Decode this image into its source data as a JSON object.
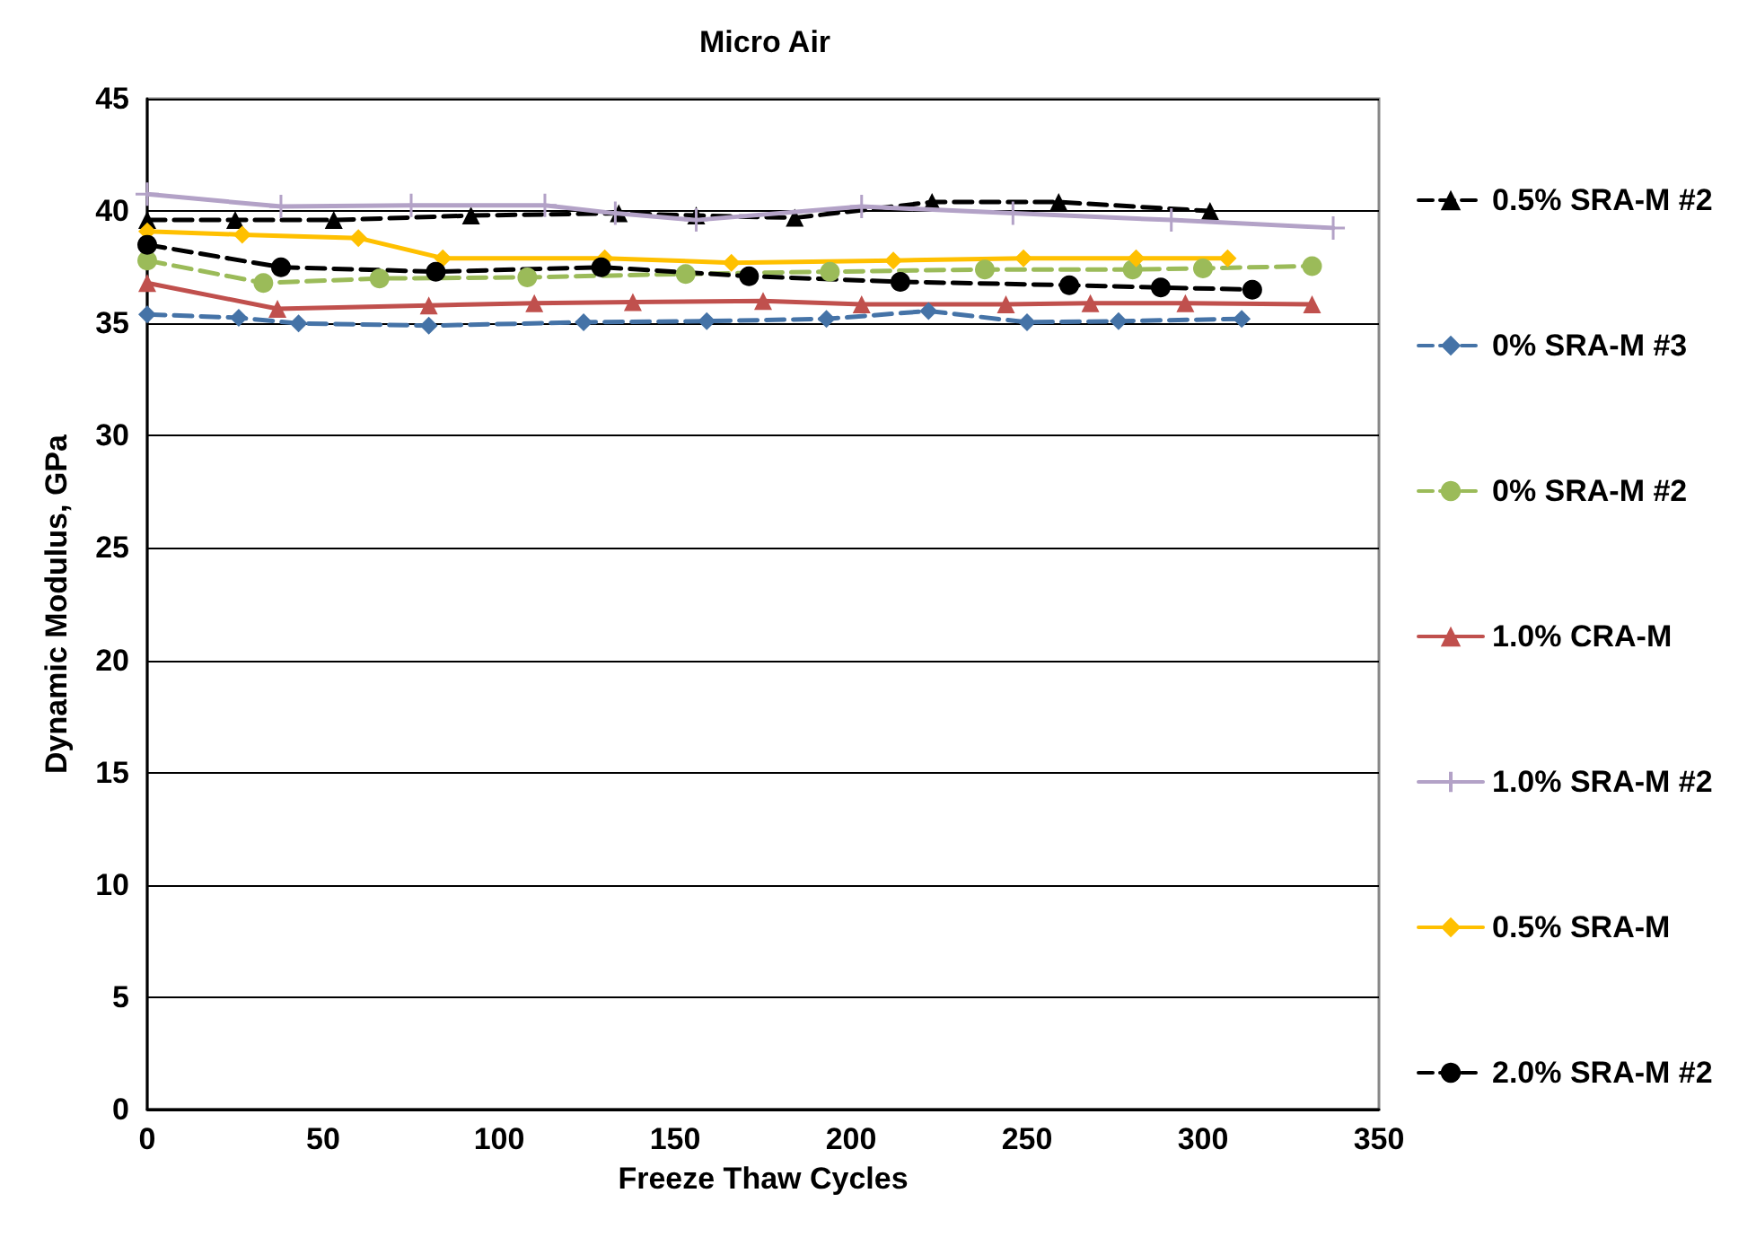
{
  "chart_data": {
    "type": "line",
    "title": "Micro Air",
    "xlabel": "Freeze Thaw Cycles",
    "ylabel": "Dynamic Modulus, GPa",
    "xlim": [
      0,
      350
    ],
    "xticks": [
      0,
      50,
      100,
      150,
      200,
      250,
      300,
      350
    ],
    "ylim": [
      0,
      45
    ],
    "yticks": [
      0,
      5,
      10,
      15,
      20,
      25,
      30,
      35,
      40,
      45
    ],
    "grid": "y",
    "legend": "right",
    "series": [
      {
        "name": "0.5% SRA-M #2",
        "color": "#000000",
        "marker": "triangle",
        "line_style": "dashed",
        "x": [
          0,
          25,
          53,
          92,
          134,
          156,
          184,
          223,
          259,
          302
        ],
        "values": [
          39.6,
          39.6,
          39.6,
          39.8,
          39.9,
          39.8,
          39.7,
          40.4,
          40.4,
          40.0
        ]
      },
      {
        "name": "0% SRA-M #3",
        "color": "#4573a7",
        "marker": "diamond",
        "line_style": "dashed",
        "x": [
          0,
          26,
          43,
          80,
          124,
          159,
          193,
          222,
          250,
          276,
          311
        ],
        "values": [
          35.4,
          35.25,
          35.0,
          34.9,
          35.05,
          35.1,
          35.2,
          35.55,
          35.05,
          35.1,
          35.2
        ]
      },
      {
        "name": "0% SRA-M #2",
        "color": "#9bbb59",
        "marker": "circle",
        "line_style": "dashed",
        "x": [
          0,
          33,
          66,
          108,
          153,
          194,
          238,
          280,
          300,
          331
        ],
        "values": [
          37.8,
          36.8,
          37.0,
          37.05,
          37.2,
          37.3,
          37.4,
          37.4,
          37.45,
          37.55
        ]
      },
      {
        "name": "1.0% CRA-M",
        "color": "#c0504d",
        "marker": "triangle",
        "line_style": "solid",
        "x": [
          0,
          37,
          80,
          110,
          138,
          175,
          203,
          244,
          268,
          295,
          331
        ],
        "values": [
          36.8,
          35.65,
          35.8,
          35.9,
          35.95,
          36.0,
          35.85,
          35.85,
          35.9,
          35.9,
          35.85
        ]
      },
      {
        "name": "1.0% SRA-M #2",
        "color": "#b3a2c7",
        "marker": "cross",
        "line_style": "solid",
        "x": [
          0,
          38,
          75,
          113,
          133,
          156,
          203,
          246,
          291,
          337
        ],
        "values": [
          40.75,
          40.2,
          40.25,
          40.25,
          39.9,
          39.6,
          40.2,
          39.9,
          39.6,
          39.25
        ]
      },
      {
        "name": "0.5% SRA-M",
        "color": "#ffc000",
        "marker": "diamond",
        "line_style": "solid",
        "x": [
          0,
          27,
          60,
          84,
          130,
          166,
          212,
          249,
          281,
          307
        ],
        "values": [
          39.1,
          38.95,
          38.8,
          37.9,
          37.9,
          37.7,
          37.8,
          37.9,
          37.9,
          37.9
        ]
      },
      {
        "name": "2.0% SRA-M #2",
        "color": "#000000",
        "marker": "circle",
        "line_style": "dashed",
        "x": [
          0,
          38,
          82,
          129,
          171,
          214,
          262,
          288,
          314
        ],
        "values": [
          38.5,
          37.5,
          37.3,
          37.5,
          37.1,
          36.85,
          36.7,
          36.6,
          36.5
        ]
      }
    ]
  }
}
